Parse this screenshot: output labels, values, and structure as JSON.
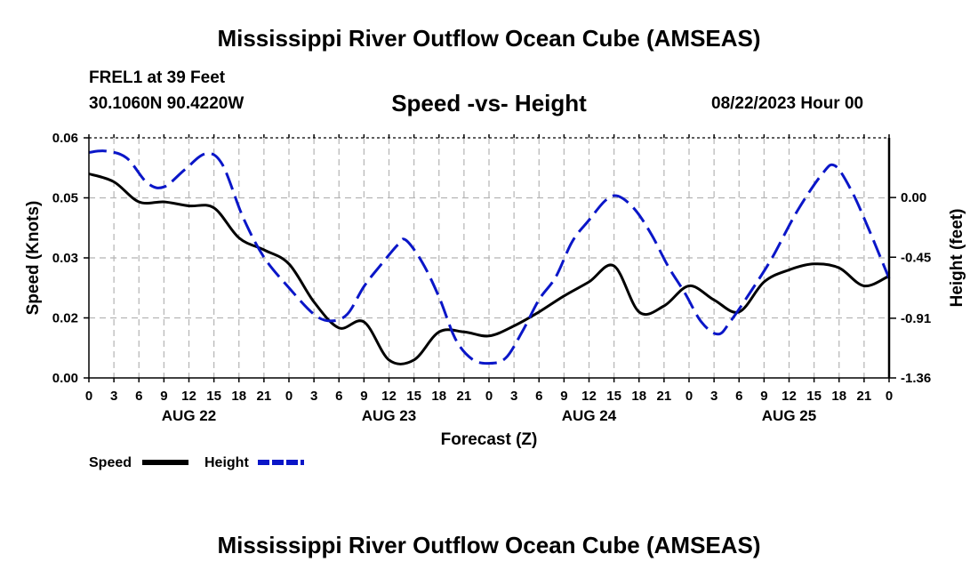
{
  "header": {
    "main_title": "Mississippi River Outflow Ocean Cube (AMSEAS)",
    "station_line": "FREL1 at 39 Feet",
    "coords_line": "30.1060N  90.4220W",
    "subtitle": "Speed -vs- Height",
    "date_line": "08/22/2023 Hour 00"
  },
  "footer": {
    "title": "Mississippi River Outflow Ocean Cube (AMSEAS)"
  },
  "colors": {
    "speed": "#000000",
    "height": "#0a16c8",
    "grid": "#b4b4b4"
  },
  "chart_data": {
    "type": "line",
    "xlabel": "Forecast (Z)",
    "ylabel": "Speed (Knots)",
    "y2label": "Height (feet)",
    "x_hours_range": [
      0,
      96
    ],
    "x_tick_step_hours": 3,
    "x_tick_labels": [
      "0",
      "3",
      "6",
      "9",
      "12",
      "15",
      "18",
      "21",
      "0",
      "3",
      "6",
      "9",
      "12",
      "15",
      "18",
      "21",
      "0",
      "3",
      "6",
      "9",
      "12",
      "15",
      "18",
      "21",
      "0",
      "3",
      "6",
      "9",
      "12",
      "15",
      "18",
      "21",
      "0"
    ],
    "day_labels": [
      {
        "label": "AUG 22",
        "hour": 12
      },
      {
        "label": "AUG 23",
        "hour": 36
      },
      {
        "label": "AUG 24",
        "hour": 60
      },
      {
        "label": "AUG 25",
        "hour": 84
      }
    ],
    "ylim": [
      0,
      0.06
    ],
    "y_ticks": [
      0,
      0.015,
      0.03,
      0.045,
      0.06
    ],
    "y_tick_labels": [
      "0.00",
      "0.02",
      "0.03",
      "0.05",
      "0.06"
    ],
    "y2lim": [
      -1.36,
      0.45
    ],
    "y2_ticks": [
      0.0,
      -0.45,
      -0.91,
      -1.36
    ],
    "y2_tick_labels": [
      "0.00",
      "-0.45",
      "-0.91",
      "-1.36"
    ],
    "legend": [
      {
        "label": "Speed",
        "series": "speed"
      },
      {
        "label": "Height",
        "series": "height"
      }
    ],
    "series": [
      {
        "name": "Speed",
        "axis": "left",
        "points": [
          [
            0,
            0.051
          ],
          [
            3,
            0.049
          ],
          [
            6,
            0.044
          ],
          [
            9,
            0.044
          ],
          [
            12,
            0.043
          ],
          [
            15,
            0.0425
          ],
          [
            18,
            0.035
          ],
          [
            21,
            0.032
          ],
          [
            24,
            0.0285
          ],
          [
            27,
            0.019
          ],
          [
            30,
            0.0125
          ],
          [
            33,
            0.014
          ],
          [
            36,
            0.0045
          ],
          [
            39,
            0.0045
          ],
          [
            42,
            0.0115
          ],
          [
            45,
            0.0115
          ],
          [
            48,
            0.0105
          ],
          [
            51,
            0.013
          ],
          [
            54,
            0.0165
          ],
          [
            57,
            0.0205
          ],
          [
            60,
            0.024
          ],
          [
            63,
            0.028
          ],
          [
            66,
            0.0165
          ],
          [
            69,
            0.018
          ],
          [
            72,
            0.023
          ],
          [
            75,
            0.0195
          ],
          [
            78,
            0.0165
          ],
          [
            81,
            0.024
          ],
          [
            84,
            0.027
          ],
          [
            87,
            0.0285
          ],
          [
            90,
            0.0275
          ],
          [
            93,
            0.023
          ],
          [
            96,
            0.0255
          ]
        ]
      },
      {
        "name": "Height",
        "axis": "right",
        "points": [
          [
            0,
            0.34
          ],
          [
            2,
            0.35
          ],
          [
            4.5,
            0.3
          ],
          [
            7,
            0.11
          ],
          [
            9,
            0.08
          ],
          [
            11.5,
            0.21
          ],
          [
            14,
            0.33
          ],
          [
            16,
            0.25
          ],
          [
            18.5,
            -0.15
          ],
          [
            21,
            -0.45
          ],
          [
            24,
            -0.68
          ],
          [
            27,
            -0.88
          ],
          [
            29,
            -0.93
          ],
          [
            31,
            -0.88
          ],
          [
            33,
            -0.67
          ],
          [
            35,
            -0.51
          ],
          [
            37,
            -0.36
          ],
          [
            38,
            -0.32
          ],
          [
            40,
            -0.49
          ],
          [
            42,
            -0.75
          ],
          [
            44,
            -1.07
          ],
          [
            46,
            -1.22
          ],
          [
            48,
            -1.25
          ],
          [
            50,
            -1.21
          ],
          [
            52,
            -1.01
          ],
          [
            54,
            -0.77
          ],
          [
            56,
            -0.6
          ],
          [
            58,
            -0.33
          ],
          [
            60,
            -0.17
          ],
          [
            62,
            -0.02
          ],
          [
            63.5,
            0.01
          ],
          [
            65.5,
            -0.09
          ],
          [
            67.5,
            -0.28
          ],
          [
            69.5,
            -0.52
          ],
          [
            71.5,
            -0.72
          ],
          [
            73.5,
            -0.94
          ],
          [
            75.5,
            -1.03
          ],
          [
            77,
            -0.93
          ],
          [
            79.5,
            -0.7
          ],
          [
            82,
            -0.45
          ],
          [
            85,
            -0.1
          ],
          [
            88,
            0.18
          ],
          [
            89.5,
            0.24
          ],
          [
            91.5,
            0.05
          ],
          [
            93.5,
            -0.23
          ],
          [
            96,
            -0.61
          ]
        ]
      }
    ]
  }
}
